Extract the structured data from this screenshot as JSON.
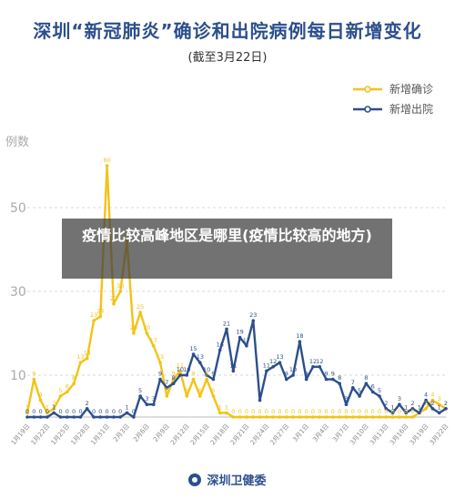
{
  "title": "深圳“新冠肺炎”确诊和出院病例每日新增变化",
  "subtitle": "(截至3月22日)",
  "overlay_text": "疫情比较高峰地区是哪里(疫情比较高的地方)",
  "footer_text": "深圳卫健委",
  "colors": {
    "confirmed": "#f2c318",
    "discharged": "#2c4f8c",
    "grid": "#d9d9d9",
    "axis_text": "#aaaaaa"
  },
  "chart_data": {
    "type": "line",
    "ylabel": "例数",
    "ylim": [
      0,
      65
    ],
    "yticks": [
      10,
      30,
      50
    ],
    "legend_position": "top-right",
    "grid": true,
    "x": [
      "1月19日",
      "1月20日",
      "1月21日",
      "1月22日",
      "1月23日",
      "1月24日",
      "1月25日",
      "1月26日",
      "1月27日",
      "1月28日",
      "1月29日",
      "1月30日",
      "1月31日",
      "2月1日",
      "2月2日",
      "2月3日",
      "2月4日",
      "2月5日",
      "2月6日",
      "2月7日",
      "2月8日",
      "2月9日",
      "2月10日",
      "2月11日",
      "2月12日",
      "2月13日",
      "2月14日",
      "2月15日",
      "2月16日",
      "2月17日",
      "2月18日",
      "2月19日",
      "2月20日",
      "2月21日",
      "2月22日",
      "2月23日",
      "2月24日",
      "2月25日",
      "2月26日",
      "2月27日",
      "2月28日",
      "2月29日",
      "3月1日",
      "3月2日",
      "3月3日",
      "3月4日",
      "3月5日",
      "3月6日",
      "3月7日",
      "3月8日",
      "3月9日",
      "3月10日",
      "3月11日",
      "3月12日",
      "3月13日",
      "3月14日",
      "3月15日",
      "3月16日",
      "3月17日",
      "3月18日",
      "3月19日",
      "3月20日",
      "3月21日",
      "3月22日"
    ],
    "xtick_labels": [
      "1月19日",
      "1月22日",
      "1月25日",
      "1月28日",
      "1月31日",
      "2月3日",
      "2月6日",
      "2月9日",
      "2月12日",
      "2月15日",
      "2月18日",
      "2月21日",
      "2月24日",
      "2月27日",
      "3月1日",
      "3月4日",
      "3月7日",
      "3月10日",
      "3月13日",
      "3月16日",
      "3月19日",
      "3月22日"
    ],
    "series": [
      {
        "name": "新增确诊",
        "values": [
          1,
          9,
          4,
          1,
          2,
          5,
          6,
          8,
          13,
          14,
          23,
          24,
          60,
          27,
          30,
          42,
          20,
          25,
          20,
          17,
          13,
          5,
          9,
          11,
          5,
          9,
          5,
          9,
          5,
          1,
          1,
          0,
          0,
          0,
          0,
          0,
          0,
          0,
          0,
          0,
          0,
          0,
          0,
          0,
          0,
          0,
          0,
          0,
          0,
          0,
          0,
          0,
          0,
          0,
          0,
          0,
          0,
          0,
          0,
          1,
          2,
          4,
          3,
          2
        ]
      },
      {
        "name": "新增出院",
        "values": [
          0,
          0,
          0,
          0,
          1,
          0,
          0,
          0,
          0,
          2,
          0,
          0,
          0,
          0,
          0,
          1,
          0,
          5,
          3,
          3,
          9,
          7,
          8,
          10,
          10,
          15,
          13,
          10,
          9,
          16,
          21,
          11,
          19,
          17,
          23,
          4,
          11,
          12,
          13,
          9,
          10,
          18,
          9,
          12,
          12,
          9,
          9,
          8,
          3,
          7,
          5,
          8,
          6,
          5,
          2,
          1,
          3,
          1,
          2,
          1,
          4,
          2,
          1,
          2
        ]
      }
    ]
  }
}
